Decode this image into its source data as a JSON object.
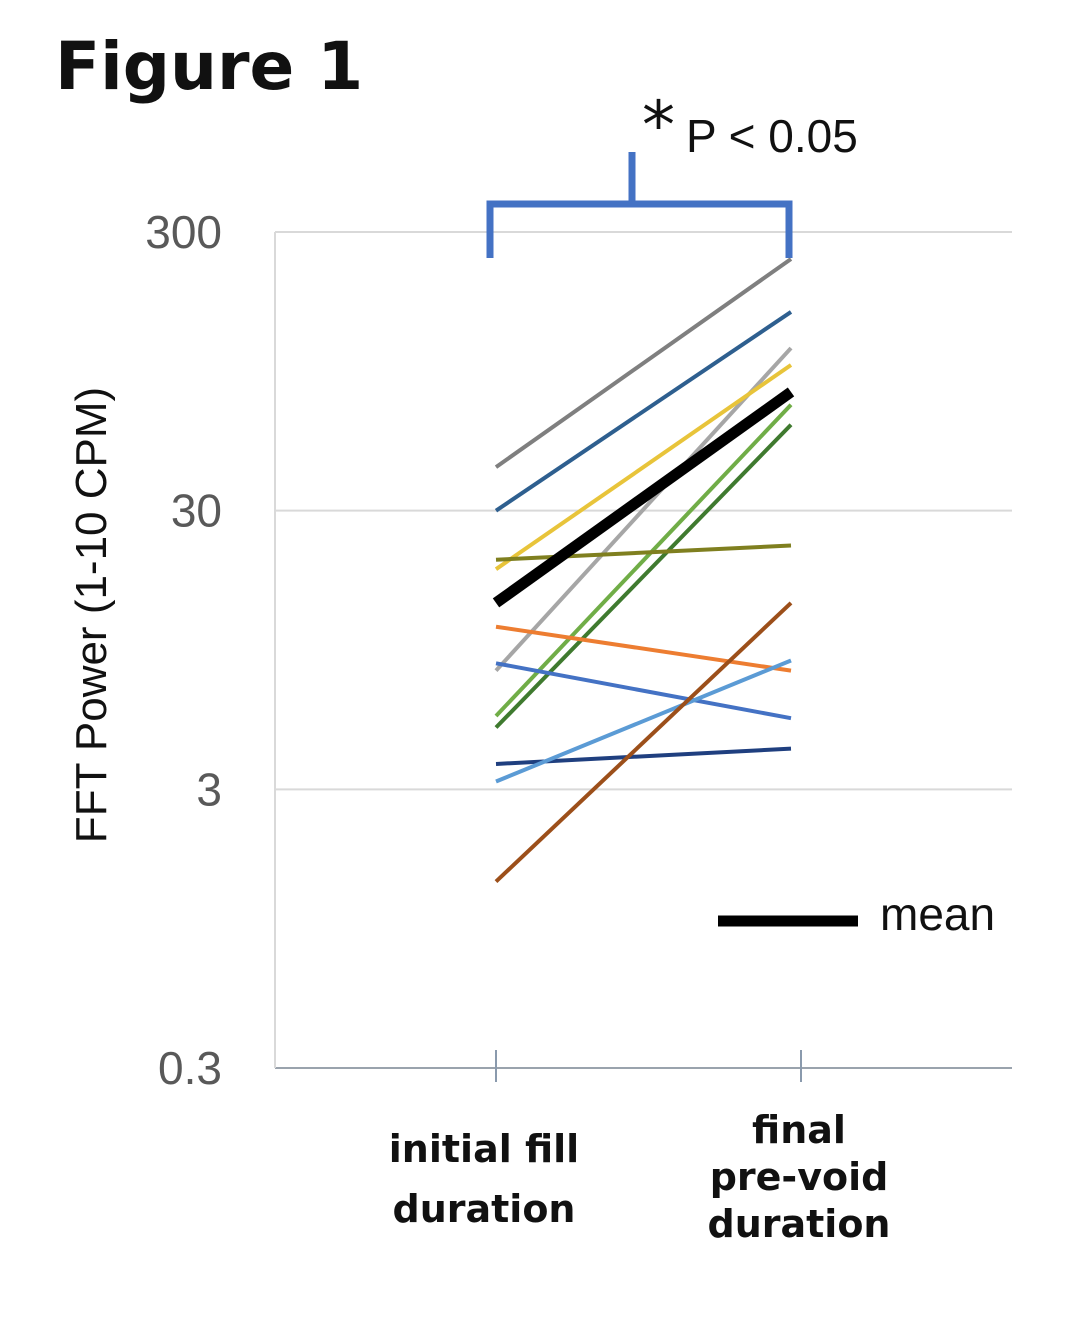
{
  "title": "Figure 1",
  "chart_data": {
    "type": "line",
    "title": "Figure 1",
    "ylabel": "FFT Power (1-10 CPM)",
    "xlabel": "",
    "yscale": "log",
    "ylim": [
      0.3,
      300
    ],
    "yticks": [
      "300",
      "30",
      "3",
      "0.3"
    ],
    "categories": [
      "initial fill duration",
      "final pre-void duration"
    ],
    "category_lines": [
      [
        "initial fill",
        "duration"
      ],
      [
        "final",
        "pre-void",
        "duration"
      ]
    ],
    "grid": true,
    "series": [
      {
        "color": "#7f7f7f",
        "values": [
          43,
          240
        ]
      },
      {
        "color": "#2e5f8f",
        "values": [
          30,
          155
        ]
      },
      {
        "color": "#a6a6a6",
        "values": [
          8,
          115
        ]
      },
      {
        "color": "#e8c43a",
        "values": [
          18.5,
          100
        ]
      },
      {
        "color": "#70ad47",
        "values": [
          5.5,
          72
        ]
      },
      {
        "color": "#3f7a2f",
        "values": [
          5,
          61
        ]
      },
      {
        "color": "#7f7f1f",
        "values": [
          20,
          22.5
        ]
      },
      {
        "color": "#ed7d31",
        "values": [
          11.5,
          8
        ]
      },
      {
        "color": "#4472c4",
        "values": [
          8.5,
          5.4
        ]
      },
      {
        "color": "#1f3f7f",
        "values": [
          3.7,
          4.2
        ]
      },
      {
        "color": "#5b9bd5",
        "values": [
          3.2,
          8.7
        ]
      },
      {
        "color": "#9c4f1a",
        "values": [
          1.4,
          14
        ]
      },
      {
        "name": "mean",
        "color": "#000000",
        "values": [
          14,
          80
        ],
        "mean": true
      }
    ],
    "legend": {
      "label": "mean",
      "position": "bottom-right"
    },
    "annotation": {
      "star": "*",
      "text": "P < 0.05",
      "bracket_color": "#4472c4"
    }
  }
}
